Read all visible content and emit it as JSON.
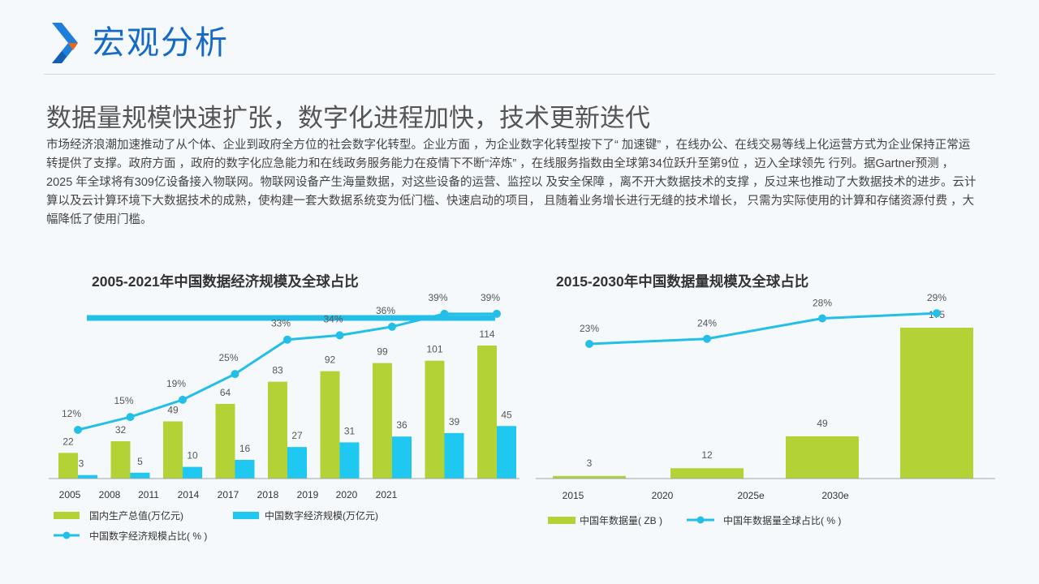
{
  "header": {
    "title": "宏观分析"
  },
  "headline": "数据量规模快速扩张，数字化进程加快，技术更新迭代",
  "body": "市场经济浪潮加速推动了从个体、企业到政府全方位的社会数字化转型。企业方面 ，为企业数字化转型按下了“ 加速键” ，在线办公、在线交易等线上化运营方式为企业保持正常运转提供了支撑。政府方面 ，政府的数字化应急能力和在线政务服务能力在疫情下不断“淬炼” ，在线服务指数由全球第34位跃升至第9位 ，迈入全球领先 行列。据Gartner预测 ，2025 年全球将有309亿设备接入物联网。物联网设备产生海量数据，对这些设备的运营、监控以 及安全保障 ，离不开大数据技术的支撑 ，反过来也推动了大数据技术的进步。云计算以及云计算环境下大数据技术的成熟，使构建一套大数据系统变为低门槛、快速启动的项目， 且随着业务增长进行无缝的技术增长， 只需为实际使用的计算和存储资源付费 ，大幅降低了使用门槛。",
  "colors": {
    "green": "#b2d235",
    "blue": "#1ec8f0",
    "line": "#23bfe8",
    "title_blue": "#1669c4"
  },
  "chart_data": [
    {
      "type": "bar",
      "title": "2005-2021年中国数据经济规模及全球占比",
      "categories": [
        "2005",
        "2008",
        "2011",
        "2014",
        "2017",
        "2018",
        "2019",
        "2020",
        "2021"
      ],
      "series": [
        {
          "name": "国内生产总值(万亿元)",
          "kind": "bar",
          "values": [
            22,
            32,
            49,
            64,
            83,
            92,
            99,
            101,
            114
          ]
        },
        {
          "name": "中国数字经济规模(万亿元)",
          "kind": "bar",
          "values": [
            3,
            5,
            10,
            16,
            27,
            31,
            36,
            39,
            45
          ]
        },
        {
          "name": "中国数字经济规模占比( % )",
          "kind": "line",
          "values": [
            12,
            15,
            19,
            25,
            33,
            34,
            36,
            39,
            39
          ],
          "labels": [
            "12%",
            "15%",
            "19%",
            "25%",
            "33%",
            "34%",
            "36%",
            "39%",
            "39%"
          ]
        }
      ],
      "tick_labels": [
        "2005",
        "2008",
        "2011",
        "2014",
        "2017",
        "2018",
        "2019",
        "2020",
        "2021"
      ]
    },
    {
      "type": "bar",
      "title": "2015-2030年中国数据量规模及全球占比",
      "categories": [
        "2015",
        "2020",
        "2025e",
        "2030e"
      ],
      "series": [
        {
          "name": "中国年数据量( ZB )",
          "kind": "bar",
          "values": [
            3,
            12,
            49,
            175
          ]
        },
        {
          "name": "中国年数据量全球占比( % )",
          "kind": "line",
          "values": [
            23,
            24,
            28,
            29
          ],
          "labels": [
            "23%",
            "24%",
            "28%",
            "29%"
          ]
        }
      ],
      "tick_labels": [
        "2015",
        "2020",
        "2025e",
        "2030e"
      ]
    }
  ]
}
